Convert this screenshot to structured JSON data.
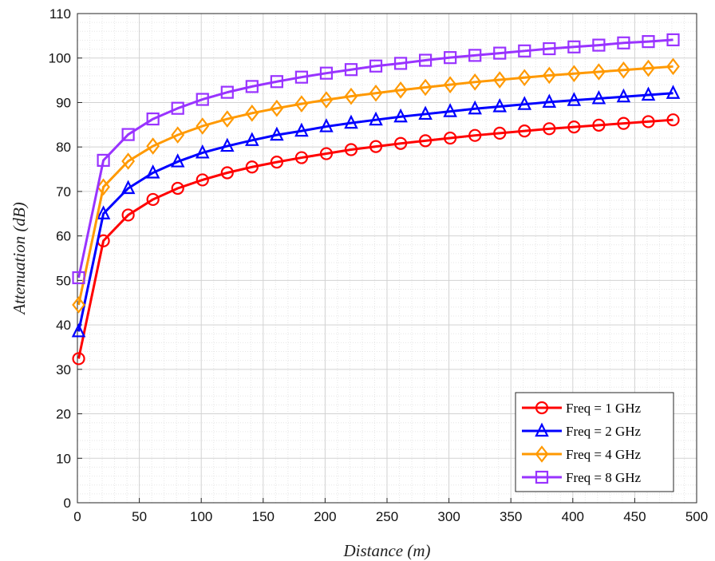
{
  "chart_data": {
    "type": "line",
    "title": "",
    "xlabel": "Distance (m)",
    "ylabel": "Attenuation (dB)",
    "xlim": [
      0,
      500
    ],
    "ylim": [
      0,
      110
    ],
    "xticks": [
      "0",
      "50",
      "100",
      "150",
      "200",
      "250",
      "300",
      "350",
      "400",
      "450",
      "500"
    ],
    "yticks": [
      "0",
      "10",
      "20",
      "30",
      "40",
      "50",
      "60",
      "70",
      "80",
      "90",
      "100",
      "110"
    ],
    "grid": true,
    "minor_grid": true,
    "legend_position": "bottom-right",
    "x": [
      1,
      21,
      41,
      61,
      81,
      101,
      121,
      141,
      161,
      181,
      201,
      221,
      241,
      261,
      281,
      301,
      321,
      341,
      361,
      381,
      401,
      421,
      441,
      461,
      481
    ],
    "series": [
      {
        "name": "Freq = 1 GHz",
        "color": "#ff0000",
        "marker": "circle",
        "values": [
          32.4,
          58.9,
          64.7,
          68.2,
          70.7,
          72.6,
          74.2,
          75.5,
          76.6,
          77.6,
          78.5,
          79.4,
          80.1,
          80.8,
          81.4,
          82.0,
          82.6,
          83.1,
          83.6,
          84.1,
          84.5,
          84.9,
          85.3,
          85.7,
          86.1
        ]
      },
      {
        "name": "Freq = 2 GHz",
        "color": "#0000ff",
        "marker": "triangle",
        "values": [
          38.5,
          65.0,
          70.7,
          74.2,
          76.7,
          78.7,
          80.2,
          81.5,
          82.7,
          83.6,
          84.6,
          85.4,
          86.1,
          86.8,
          87.4,
          88.0,
          88.6,
          89.1,
          89.6,
          90.1,
          90.5,
          90.9,
          91.3,
          91.7,
          92.1
        ]
      },
      {
        "name": "Freq = 4 GHz",
        "color": "#ff9900",
        "marker": "diamond",
        "values": [
          44.5,
          71.0,
          76.8,
          80.2,
          82.7,
          84.7,
          86.3,
          87.6,
          88.7,
          89.7,
          90.6,
          91.4,
          92.1,
          92.8,
          93.4,
          94.0,
          94.6,
          95.1,
          95.6,
          96.1,
          96.5,
          96.9,
          97.3,
          97.7,
          98.1
        ]
      },
      {
        "name": "Freq = 8 GHz",
        "color": "#9933ff",
        "marker": "square",
        "values": [
          50.6,
          77.0,
          82.8,
          86.3,
          88.7,
          90.7,
          92.3,
          93.6,
          94.7,
          95.7,
          96.6,
          97.4,
          98.2,
          98.8,
          99.5,
          100.1,
          100.6,
          101.1,
          101.6,
          102.1,
          102.5,
          102.9,
          103.4,
          103.7,
          104.1
        ]
      }
    ]
  }
}
